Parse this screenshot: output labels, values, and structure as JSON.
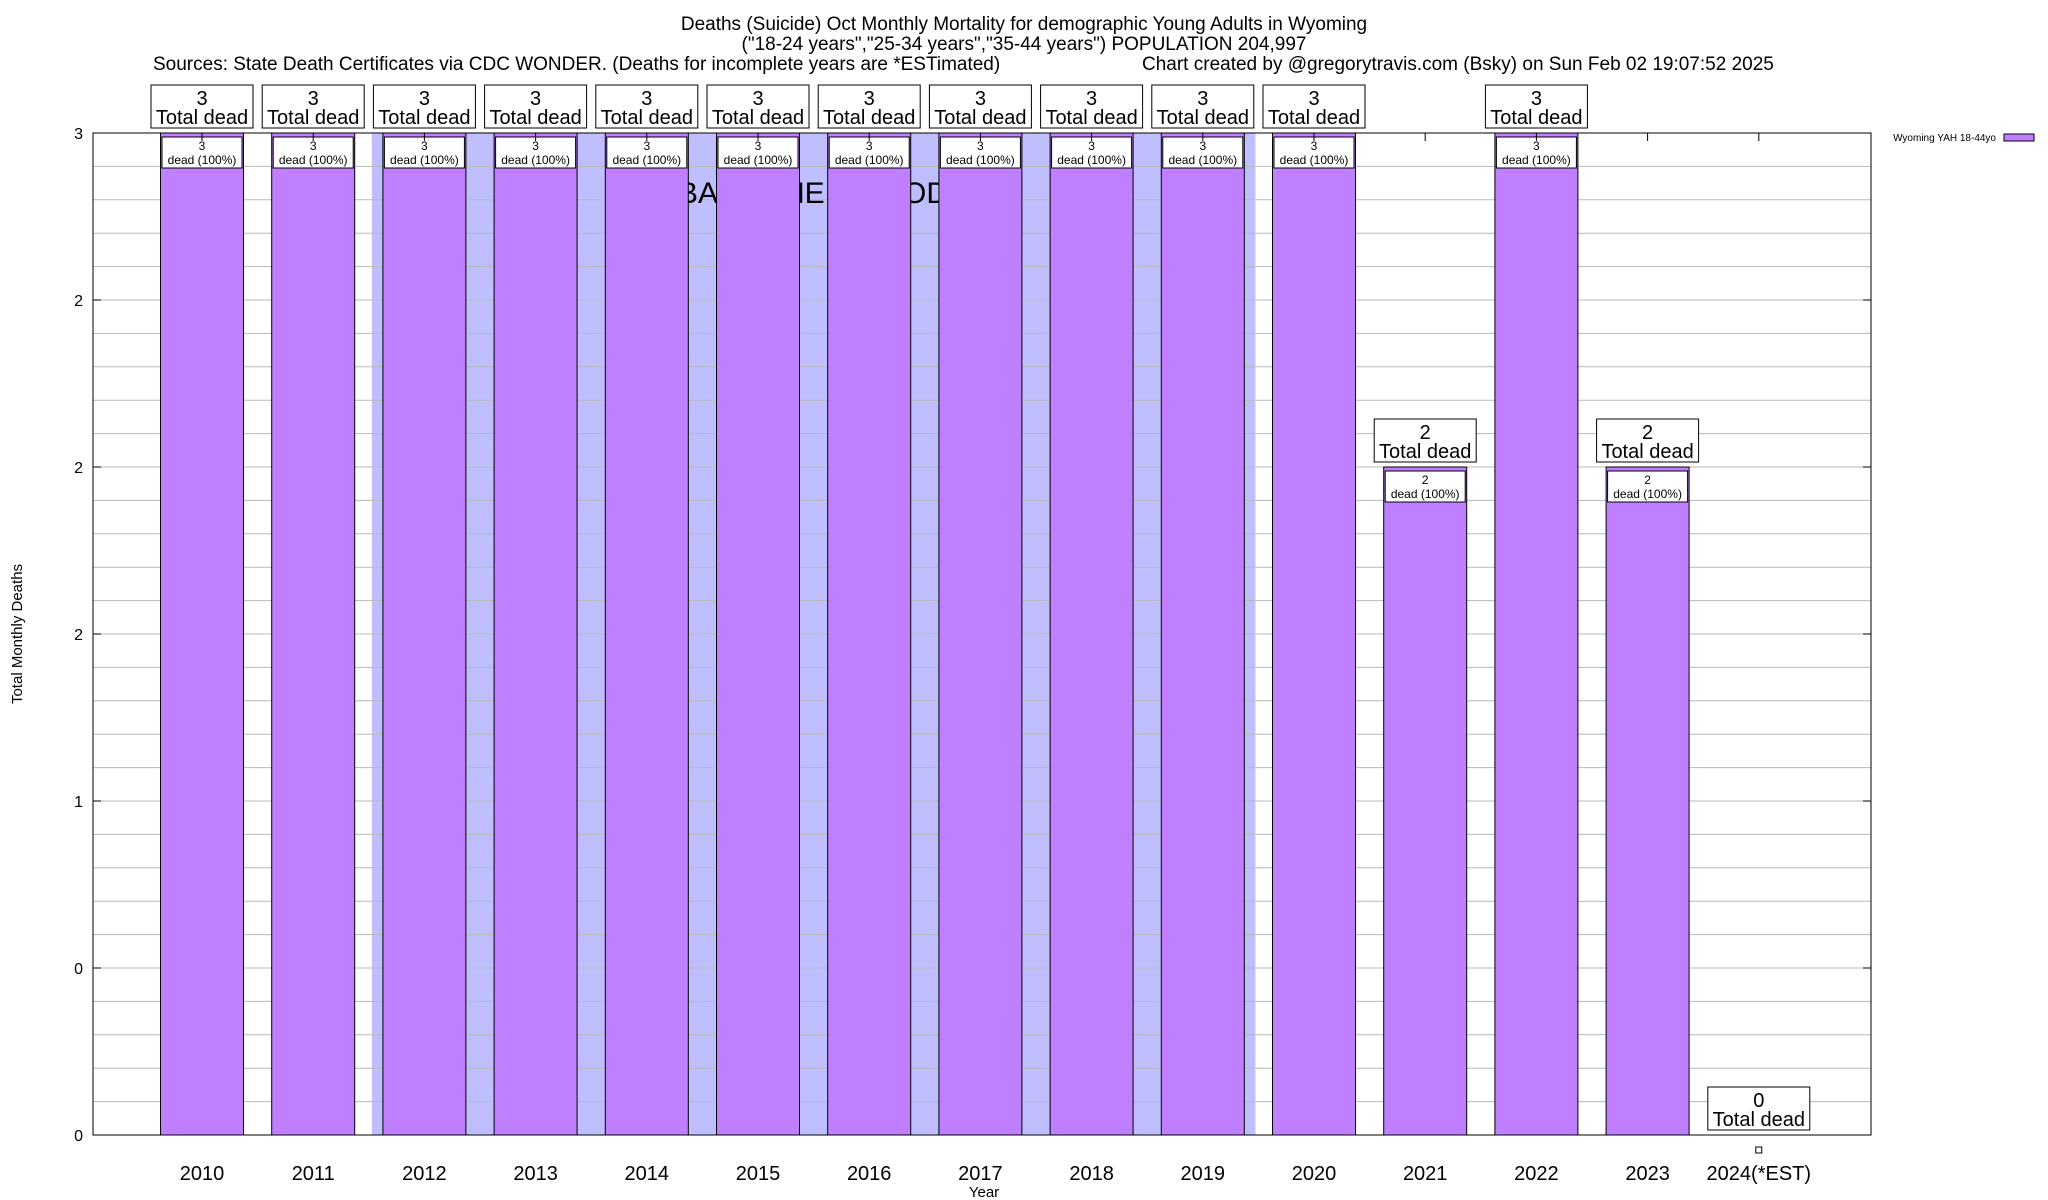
{
  "header": {
    "title": "Deaths (Suicide) Oct Monthly Mortality for demographic Young Adults in Wyoming",
    "subtitle": "(\"18-24 years\",\"25-34 years\",\"35-44 years\") POPULATION 204,997",
    "sources": "Sources: State Death Certificates via CDC WONDER. (Deaths for incomplete years are *ESTimated)",
    "credit": "Chart created by @gregorytravis.com (Bsky) on Sun Feb 02 19:07:52 2025"
  },
  "chart_data": {
    "type": "bar",
    "xlabel": "Year",
    "ylabel": "Total Monthly Deaths",
    "ylim": [
      0,
      3
    ],
    "y_tick_labels": [
      "0",
      "0",
      "1",
      "2",
      "2",
      "2",
      "3"
    ],
    "grid": true,
    "legend": {
      "entry": "Wyoming YAH 18-44yo",
      "placement": "top-right"
    },
    "categories": [
      "2010",
      "2011",
      "2012",
      "2013",
      "2014",
      "2015",
      "2016",
      "2017",
      "2018",
      "2019",
      "2020",
      "2021",
      "2022",
      "2023",
      "2024(*EST)"
    ],
    "series": [
      {
        "name": "Wyoming YAH 18-44yo",
        "values": [
          3,
          3,
          3,
          3,
          3,
          3,
          3,
          3,
          3,
          3,
          3,
          2,
          3,
          2,
          0
        ]
      }
    ],
    "total_labels": [
      "3",
      "3",
      "3",
      "3",
      "3",
      "3",
      "3",
      "3",
      "3",
      "3",
      "3",
      "2",
      "3",
      "2",
      "0"
    ],
    "total_suffix": "Total dead",
    "inner_labels": [
      "3",
      "3",
      "3",
      "3",
      "3",
      "3",
      "3",
      "3",
      "3",
      "3",
      "3",
      "2",
      "3",
      "2",
      ""
    ],
    "inner_suffix": "dead (100%)",
    "annotation": "BASELINE PERIOD",
    "baseline_period": [
      "2012",
      "2019"
    ],
    "colors": {
      "bar": "#bf7fff",
      "baseline": "#bfbfff",
      "grid": "#b8b8b8"
    }
  }
}
